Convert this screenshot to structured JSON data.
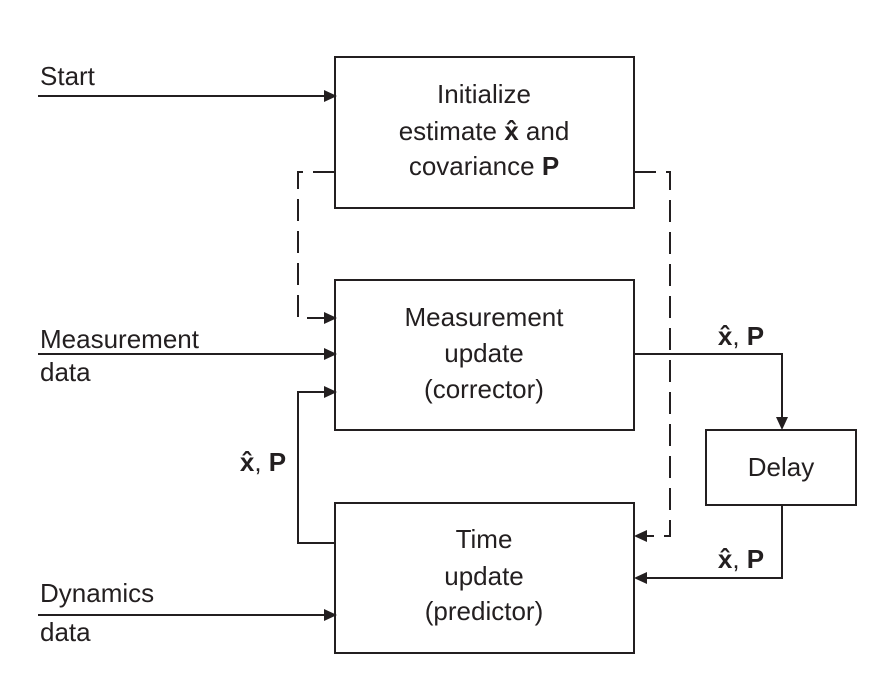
{
  "inputs": {
    "start": "Start",
    "measurement_line1": "Measurement",
    "measurement_line2": "data",
    "dynamics_line1": "Dynamics",
    "dynamics_line2": "data"
  },
  "boxes": {
    "initialize": {
      "line1": "Initialize",
      "line2_pre": "estimate",
      "line2_sym": "x̂",
      "line2_post": "and",
      "line3_pre": "covariance",
      "line3_sym": "P"
    },
    "measurement_update": {
      "line1": "Measurement",
      "line2": "update",
      "line3": "(corrector)"
    },
    "time_update": {
      "line1": "Time",
      "line2": "update",
      "line3": "(predictor)"
    },
    "delay": {
      "label": "Delay"
    }
  },
  "signals": {
    "state": "x̂",
    "sep": ",",
    "cov": "P"
  }
}
